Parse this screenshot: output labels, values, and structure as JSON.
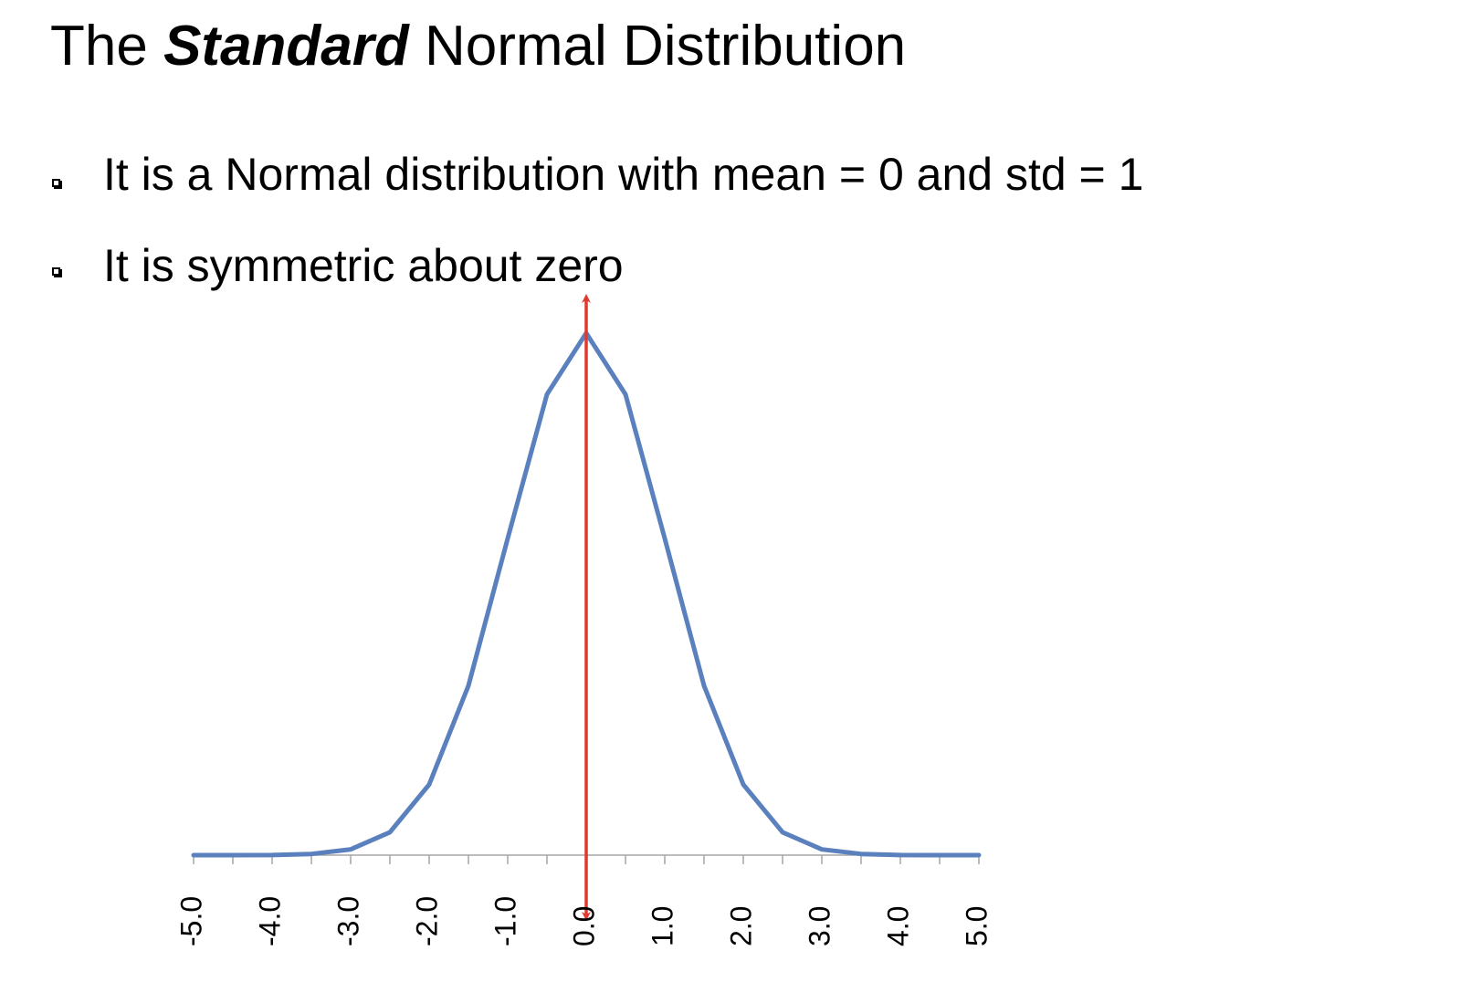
{
  "slide": {
    "title_prefix": "The ",
    "title_emphasis": "Standard",
    "title_suffix": " Normal Distribution",
    "bullets": [
      "It is a Normal distribution with mean = 0 and std = 1",
      "It is symmetric about zero"
    ]
  },
  "chart_data": {
    "type": "line",
    "title": "",
    "xlabel": "",
    "ylabel": "",
    "xlim": [
      -5.0,
      5.0
    ],
    "x_ticks": [
      -5.0,
      -4.0,
      -3.0,
      -2.0,
      -1.0,
      0.0,
      1.0,
      2.0,
      3.0,
      4.0,
      5.0
    ],
    "x_tick_labels": [
      "-5.0",
      "-4.0",
      "-3.0",
      "-2.0",
      "-1.0",
      "0.0",
      "1.0",
      "2.0",
      "3.0",
      "4.0",
      "5.0"
    ],
    "x_minor_step": 0.5,
    "y_axis_visible": false,
    "grid": false,
    "legend": "none",
    "series": [
      {
        "color": "#5b80be",
        "x": [
          -5.0,
          -4.5,
          -4.0,
          -3.5,
          -3.0,
          -2.5,
          -2.0,
          -1.5,
          -1.0,
          -0.5,
          0.0,
          0.5,
          1.0,
          1.5,
          2.0,
          2.5,
          3.0,
          3.5,
          4.0,
          4.5,
          5.0
        ],
        "y": [
          0.0,
          0.0,
          0.0001,
          0.0009,
          0.0044,
          0.0175,
          0.054,
          0.1295,
          0.242,
          0.3521,
          0.3989,
          0.3521,
          0.242,
          0.1295,
          0.054,
          0.0175,
          0.0044,
          0.0009,
          0.0001,
          0.0,
          0.0
        ]
      }
    ],
    "annotations": [
      {
        "type": "double-arrow",
        "x": 0.0,
        "color": "#e03a2f"
      }
    ]
  }
}
